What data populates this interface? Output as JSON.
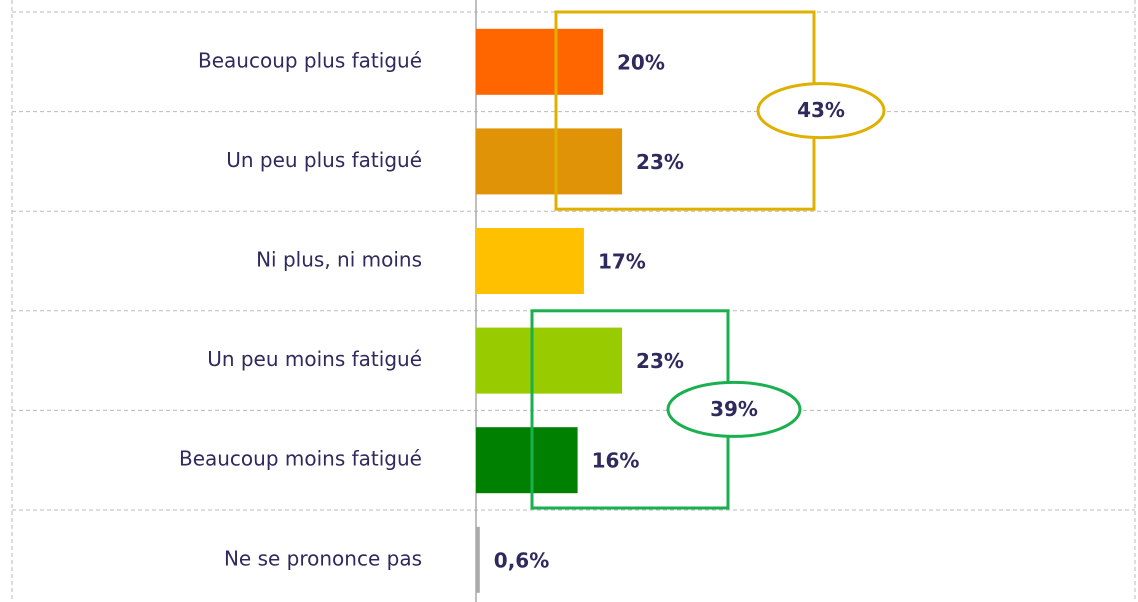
{
  "chart_data": {
    "type": "bar",
    "orientation": "horizontal",
    "categories": [
      "Beaucoup plus fatigué",
      "Un peu plus fatigué",
      "Ni plus, ni moins",
      "Un peu moins fatigué",
      "Beaucoup moins fatigué",
      "Ne se prononce pas"
    ],
    "values": [
      20,
      23,
      17,
      23,
      16,
      0.6
    ],
    "value_labels": [
      "20%",
      "23%",
      "17%",
      "23%",
      "16%",
      "0,6%"
    ],
    "colors": [
      "#ff6600",
      "#e09306",
      "#ffc000",
      "#99cc00",
      "#008000",
      "#aaaaaa"
    ],
    "annotations": [
      {
        "value": 43,
        "label": "43%",
        "color": "#dfb000",
        "categories": [
          "Beaucoup plus fatigué",
          "Un peu plus fatigué"
        ]
      },
      {
        "value": 39,
        "label": "39%",
        "color": "#1aaf4f",
        "categories": [
          "Un peu moins fatigué",
          "Beaucoup moins fatigué"
        ]
      }
    ]
  }
}
